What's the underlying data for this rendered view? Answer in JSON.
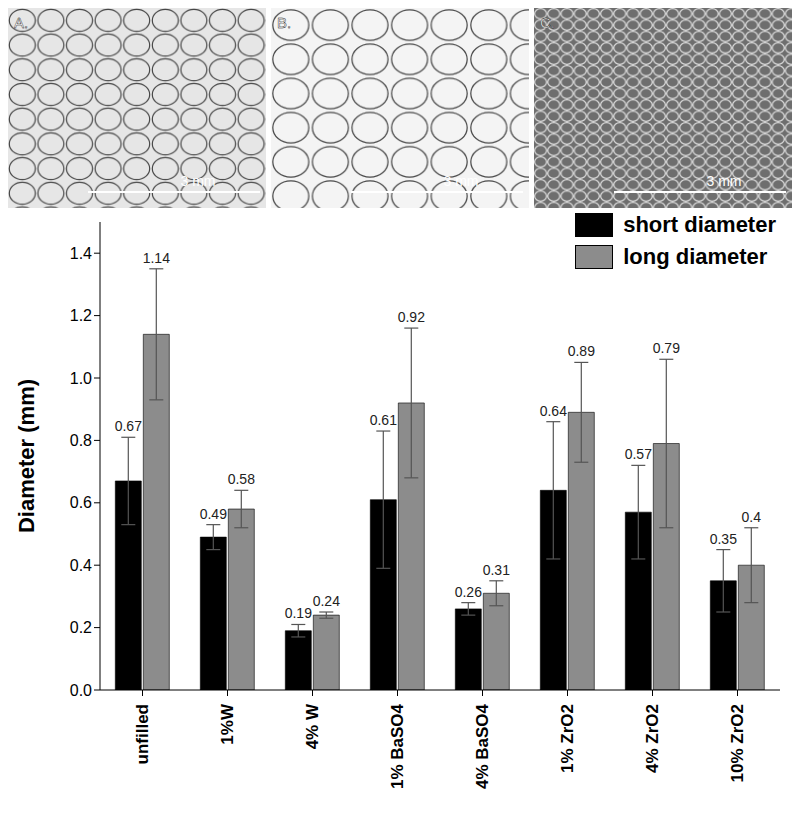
{
  "images": [
    {
      "label": "A.",
      "scale_bar": "3 mm"
    },
    {
      "label": "B.",
      "scale_bar": "3 mm"
    },
    {
      "label": "C.",
      "scale_bar": "3 mm"
    }
  ],
  "chart_data": {
    "type": "bar",
    "y_label": "Diameter (mm)",
    "categories": [
      "unfilled",
      "1%W",
      "4% W",
      "1% BaSO4",
      "4% BaSO4",
      "1% ZrO2",
      "4% ZrO2",
      "10% ZrO2"
    ],
    "series": [
      {
        "name": "short diameter",
        "color": "#000000",
        "values": [
          0.67,
          0.49,
          0.19,
          0.61,
          0.26,
          0.64,
          0.57,
          0.35
        ],
        "errors": [
          0.14,
          0.04,
          0.02,
          0.22,
          0.02,
          0.22,
          0.15,
          0.1
        ]
      },
      {
        "name": "long diameter",
        "color": "#8c8c8c",
        "values": [
          1.14,
          0.58,
          0.24,
          0.92,
          0.31,
          0.89,
          0.79,
          0.4
        ],
        "errors": [
          0.21,
          0.06,
          0.01,
          0.24,
          0.04,
          0.16,
          0.27,
          0.12
        ]
      }
    ],
    "ylim": [
      0,
      1.5
    ],
    "yticks": [
      {
        "value": 0,
        "label": "0.0"
      },
      0.2,
      0.4,
      0.6,
      0.8,
      {
        "value": 1,
        "label": "1.0"
      },
      1.2,
      1.4
    ],
    "grid": false,
    "legend": "top-right",
    "data_labels": true
  }
}
